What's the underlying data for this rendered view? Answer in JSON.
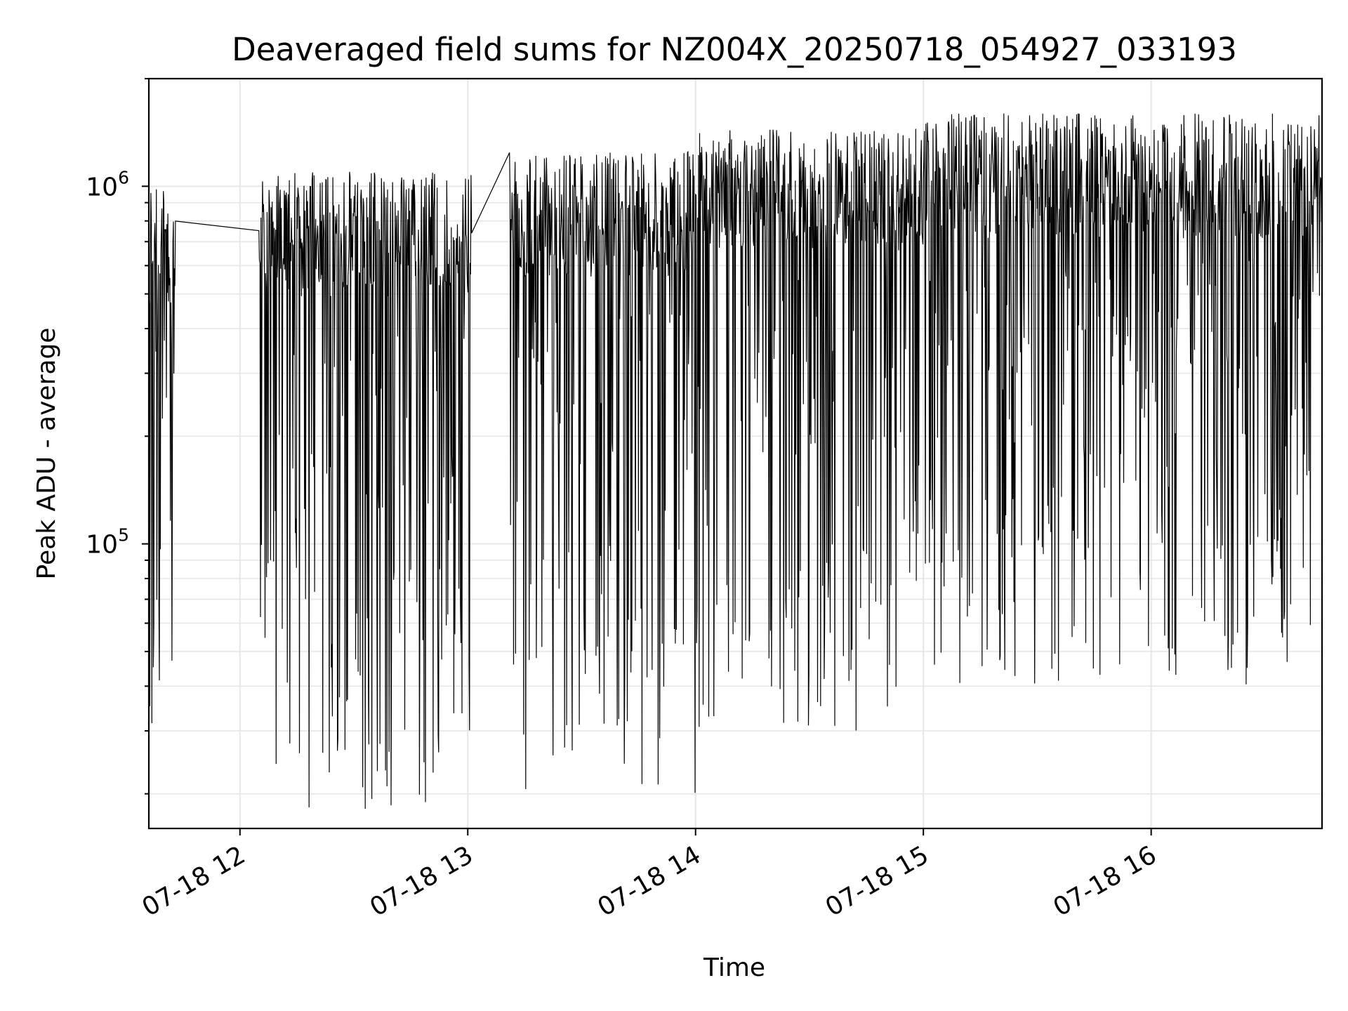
{
  "chart_data": {
    "type": "line",
    "title": "Deaveraged field sums for NZ004X_20250718_054927_033193",
    "xlabel": "Time",
    "ylabel": "Peak ADU - average",
    "yscale": "log",
    "xlim": [
      "07-18 11:36",
      "07-18 16:45"
    ],
    "ylim": [
      16000,
      2000000
    ],
    "x_ticks": [
      "07-18 12",
      "07-18 13",
      "07-18 14",
      "07-18 15",
      "07-18 16"
    ],
    "y_ticks": [
      {
        "base": "10",
        "exp": "5",
        "value": 100000
      },
      {
        "base": "10",
        "exp": "6",
        "value": 1000000
      }
    ],
    "grid": true,
    "line_color": "#000000",
    "gaps": [
      {
        "from": "07-18 11:43",
        "to": "07-18 12:05"
      },
      {
        "from": "07-18 13:01",
        "to": "07-18 13:11"
      }
    ],
    "segments": [
      {
        "start": "07-18 11:36",
        "end": "07-18 11:43",
        "low": 25000,
        "high": 1000000
      },
      {
        "start": "07-18 12:05",
        "end": "07-18 13:01",
        "low": 18000,
        "high": 1100000
      },
      {
        "start": "07-18 13:11",
        "end": "07-18 14:00",
        "low": 20000,
        "high": 1250000
      },
      {
        "start": "07-18 14:00",
        "end": "07-18 15:00",
        "low": 30000,
        "high": 1450000
      },
      {
        "start": "07-18 15:00",
        "end": "07-18 16:45",
        "low": 40000,
        "high": 1600000
      }
    ]
  }
}
